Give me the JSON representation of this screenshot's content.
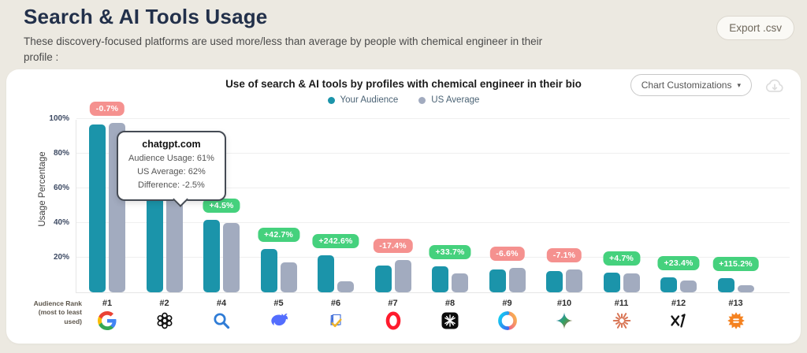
{
  "page": {
    "title": "Search & AI Tools Usage",
    "subtitle": "These discovery-focused platforms are used more/less than average by people with chemical engineer in their profile :",
    "export_label": "Export .csv"
  },
  "card": {
    "chart_title": "Use of search & AI tools by profiles with chemical engineer in their bio",
    "customizations_label": "Chart Customizations",
    "caret_icon": "▾",
    "download_icon": "cloud-download-icon"
  },
  "legend": [
    {
      "label": "Your Audience",
      "color": "#1b94aa"
    },
    {
      "label": "US Average",
      "color": "#a2abbf"
    }
  ],
  "tooltip": {
    "title": "chatgpt.com",
    "lines": [
      "Audience Usage: 61%",
      "US Average: 62%",
      "Difference: -2.5%"
    ]
  },
  "chart_data": {
    "type": "bar",
    "title": "Use of search & AI tools by profiles with chemical engineer in their bio",
    "ylabel": "Usage Percentage",
    "xlabel_line1": "Audience Rank",
    "xlabel_line2": "(most to least used)",
    "ylim": [
      0,
      100
    ],
    "yticks": [
      "20%",
      "40%",
      "60%",
      "80%",
      "100%"
    ],
    "grid": "horizontal",
    "legend_position": "top-center",
    "categories": [
      "#1",
      "#2",
      "#4",
      "#5",
      "#6",
      "#7",
      "#8",
      "#9",
      "#10",
      "#11",
      "#12",
      "#13"
    ],
    "icons": [
      "google",
      "chatgpt",
      "search-magnifier",
      "deepseek-whale",
      "document-fan",
      "opera",
      "snowflake-app",
      "copilot",
      "gemini",
      "claude",
      "xai",
      "orange-burst"
    ],
    "series": [
      {
        "name": "Your Audience",
        "color": "#1b94aa",
        "values": [
          97,
          61,
          42,
          25,
          21.5,
          15.5,
          14.8,
          13,
          12.4,
          11.5,
          8.5,
          8.3
        ]
      },
      {
        "name": "US Average",
        "color": "#a2abbf",
        "values": [
          97.7,
          62,
          40.2,
          17.5,
          6.3,
          18.8,
          11.1,
          13.9,
          13.3,
          11,
          6.9,
          3.9
        ]
      }
    ],
    "badges": [
      {
        "label": "-0.7%",
        "type": "negative",
        "visible": true
      },
      {
        "label": "-2.5%",
        "type": "negative",
        "visible": false
      },
      {
        "label": "+4.5%",
        "type": "positive",
        "visible": true
      },
      {
        "label": "+42.7%",
        "type": "positive",
        "visible": true
      },
      {
        "label": "+242.6%",
        "type": "positive",
        "visible": true
      },
      {
        "label": "-17.4%",
        "type": "negative",
        "visible": true
      },
      {
        "label": "+33.7%",
        "type": "positive",
        "visible": true
      },
      {
        "label": "-6.6%",
        "type": "negative",
        "visible": true
      },
      {
        "label": "-7.1%",
        "type": "negative",
        "visible": true
      },
      {
        "label": "+4.7%",
        "type": "positive",
        "visible": true
      },
      {
        "label": "+23.4%",
        "type": "positive",
        "visible": true
      },
      {
        "label": "+115.2%",
        "type": "positive",
        "visible": true
      }
    ]
  }
}
